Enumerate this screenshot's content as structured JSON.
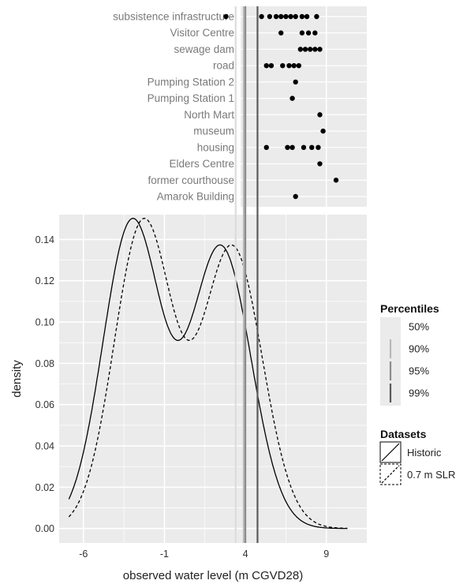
{
  "chart_data": [
    {
      "type": "scatter",
      "categories": [
        "subsistence infrastructure",
        "Visitor Centre",
        "sewage dam",
        "road",
        "Pumping Station 2",
        "Pumping Station 1",
        "North Mart",
        "museum",
        "housing",
        "Elders Centre",
        "former courthouse",
        "Amarok Building"
      ],
      "points": [
        {
          "category": "subsistence infrastructure",
          "x": [
            2.8,
            5.0,
            5.5,
            5.9,
            6.2,
            6.5,
            6.8,
            7.1,
            7.5,
            7.8,
            8.4
          ]
        },
        {
          "category": "Visitor Centre",
          "x": [
            6.2,
            7.5,
            7.9,
            8.3
          ]
        },
        {
          "category": "sewage dam",
          "x": [
            7.4,
            7.7,
            8.0,
            8.3,
            8.6
          ]
        },
        {
          "category": "road",
          "x": [
            5.3,
            5.6,
            6.3,
            6.7,
            7.0,
            7.3
          ]
        },
        {
          "category": "Pumping Station 2",
          "x": [
            7.1
          ]
        },
        {
          "category": "Pumping Station 1",
          "x": [
            6.9
          ]
        },
        {
          "category": "North Mart",
          "x": [
            8.6
          ]
        },
        {
          "category": "museum",
          "x": [
            8.8
          ]
        },
        {
          "category": "housing",
          "x": [
            5.3,
            6.6,
            6.9,
            7.6,
            8.1,
            8.5
          ]
        },
        {
          "category": "Elders Centre",
          "x": [
            8.6
          ]
        },
        {
          "category": "former courthouse",
          "x": [
            9.6
          ]
        },
        {
          "category": "Amarok Building",
          "x": [
            7.1
          ]
        }
      ]
    },
    {
      "type": "line",
      "xlabel": "observed water level (m CGVD28)",
      "ylabel": "density",
      "xlim": [
        -7.5,
        11.5
      ],
      "ylim": [
        -0.007,
        0.152
      ],
      "xticks": [
        -6,
        -1,
        4,
        9
      ],
      "yticks": [
        0.0,
        0.02,
        0.04,
        0.06,
        0.08,
        0.1,
        0.12,
        0.14
      ],
      "ytick_labels": [
        "0.00",
        "0.02",
        "0.04",
        "0.06",
        "0.08",
        "0.10",
        "0.12",
        "0.14"
      ],
      "series": [
        {
          "name": "Historic",
          "style": "solid",
          "peaks": [
            {
              "mu": -3.0,
              "sigma": 1.8,
              "weight": 0.67
            },
            {
              "mu": 2.5,
              "sigma": 1.85,
              "weight": 0.63
            }
          ]
        },
        {
          "name": "0.7 m SLR",
          "style": "dashed",
          "peaks": [
            {
              "mu": -2.3,
              "sigma": 1.8,
              "weight": 0.67
            },
            {
              "mu": 3.2,
              "sigma": 1.85,
              "weight": 0.63
            }
          ]
        }
      ],
      "percentiles": [
        {
          "label": "50%",
          "x": 3.4,
          "color": "#dcdcdc"
        },
        {
          "label": "90%",
          "x": 3.9,
          "color": "#b8b8b8"
        },
        {
          "label": "95%",
          "x": 4.0,
          "color": "#8c8c8c"
        },
        {
          "label": "99%",
          "x": 4.75,
          "color": "#5a5a5a"
        }
      ],
      "legend": {
        "percentiles_title": "Percentiles",
        "datasets_title": "Datasets",
        "position": "right"
      }
    }
  ],
  "colors": {
    "panel": "#ebebeb",
    "grid": "#ffffff",
    "point": "#000000"
  }
}
